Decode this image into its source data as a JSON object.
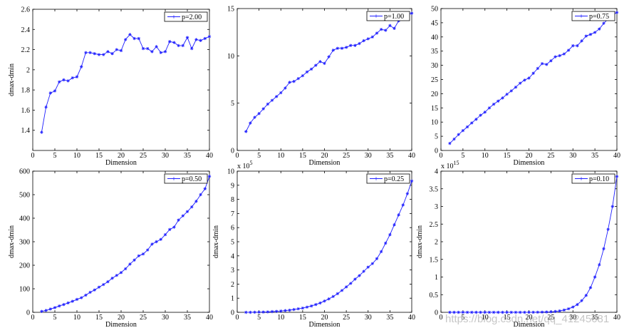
{
  "figure": {
    "watermark": "https://blog.csdn.net/qq_41245681",
    "series_color": "#1f1fff"
  },
  "chart_data": [
    {
      "type": "line",
      "title": "",
      "xlabel": "Dimension",
      "ylabel": "dmax-dmin",
      "xlim": [
        0,
        40
      ],
      "ylim": [
        1.2,
        2.6
      ],
      "xticks": [
        0,
        5,
        10,
        15,
        20,
        25,
        30,
        35,
        40
      ],
      "yticks": [
        1.4,
        1.6,
        1.8,
        2,
        2.2,
        2.4,
        2.6
      ],
      "ytick_labels": [
        "1.4",
        "1.6",
        "1.8",
        "2",
        "2.2",
        "2.4",
        "2.6"
      ],
      "exponent_label": "",
      "legend": "p=2.00",
      "legend_position": "top-right",
      "series": [
        {
          "name": "p=2.00",
          "x": [
            2,
            3,
            4,
            5,
            6,
            7,
            8,
            9,
            10,
            11,
            12,
            13,
            14,
            15,
            16,
            17,
            18,
            19,
            20,
            21,
            22,
            23,
            24,
            25,
            26,
            27,
            28,
            29,
            30,
            31,
            32,
            33,
            34,
            35,
            36,
            37,
            38,
            39,
            40
          ],
          "values": [
            1.38,
            1.63,
            1.77,
            1.79,
            1.88,
            1.9,
            1.89,
            1.92,
            1.93,
            2.03,
            2.17,
            2.17,
            2.16,
            2.15,
            2.15,
            2.18,
            2.16,
            2.2,
            2.19,
            2.3,
            2.35,
            2.31,
            2.31,
            2.21,
            2.21,
            2.18,
            2.23,
            2.17,
            2.18,
            2.28,
            2.27,
            2.24,
            2.24,
            2.32,
            2.21,
            2.3,
            2.29,
            2.31,
            2.33
          ]
        }
      ]
    },
    {
      "type": "line",
      "title": "",
      "xlabel": "Dimension",
      "ylabel": "",
      "xlim": [
        0,
        40
      ],
      "ylim": [
        0,
        15
      ],
      "xticks": [
        0,
        5,
        10,
        15,
        20,
        25,
        30,
        35,
        40
      ],
      "yticks": [
        0,
        5,
        10,
        15
      ],
      "ytick_labels": [
        "0",
        "5",
        "10",
        "15"
      ],
      "exponent_label": "",
      "legend": "p=1.00",
      "legend_position": "top-right",
      "series": [
        {
          "name": "p=1.00",
          "x": [
            2,
            3,
            4,
            5,
            6,
            7,
            8,
            9,
            10,
            11,
            12,
            13,
            14,
            15,
            16,
            17,
            18,
            19,
            20,
            21,
            22,
            23,
            24,
            25,
            26,
            27,
            28,
            29,
            30,
            31,
            32,
            33,
            34,
            35,
            36,
            37,
            38,
            39,
            40
          ],
          "values": [
            2.0,
            2.9,
            3.5,
            3.9,
            4.4,
            4.9,
            5.3,
            5.7,
            6.1,
            6.6,
            7.2,
            7.3,
            7.6,
            7.9,
            8.3,
            8.6,
            9.0,
            9.4,
            9.2,
            9.9,
            10.6,
            10.8,
            10.8,
            10.9,
            11.1,
            11.1,
            11.3,
            11.6,
            11.8,
            12.0,
            12.4,
            12.8,
            12.7,
            13.2,
            12.9,
            13.7,
            14.1,
            14.4,
            14.5
          ]
        }
      ]
    },
    {
      "type": "line",
      "title": "",
      "xlabel": "Dimension",
      "ylabel": "",
      "xlim": [
        0,
        40
      ],
      "ylim": [
        0,
        50
      ],
      "xticks": [
        0,
        5,
        10,
        15,
        20,
        25,
        30,
        35,
        40
      ],
      "yticks": [
        0,
        5,
        10,
        15,
        20,
        25,
        30,
        35,
        40,
        45,
        50
      ],
      "ytick_labels": [
        "0",
        "5",
        "10",
        "15",
        "20",
        "25",
        "30",
        "35",
        "40",
        "45",
        "50"
      ],
      "exponent_label": "",
      "legend": "p=0.75",
      "legend_position": "top-right",
      "series": [
        {
          "name": "p=0.75",
          "x": [
            2,
            3,
            4,
            5,
            6,
            7,
            8,
            9,
            10,
            11,
            12,
            13,
            14,
            15,
            16,
            17,
            18,
            19,
            20,
            21,
            22,
            23,
            24,
            25,
            26,
            27,
            28,
            29,
            30,
            31,
            32,
            33,
            34,
            35,
            36,
            37,
            38,
            39,
            40
          ],
          "values": [
            2.5,
            4.0,
            5.6,
            7.0,
            8.3,
            9.7,
            11.0,
            12.4,
            13.5,
            15.0,
            16.3,
            17.4,
            18.5,
            19.8,
            21.0,
            22.3,
            23.7,
            24.8,
            25.5,
            27.2,
            28.9,
            30.6,
            30.3,
            31.6,
            33.0,
            33.4,
            34.0,
            35.3,
            36.9,
            36.9,
            38.6,
            40.3,
            40.9,
            41.6,
            42.8,
            44.8,
            46.3,
            47.7,
            48.6
          ]
        }
      ]
    },
    {
      "type": "line",
      "title": "",
      "xlabel": "Dimension",
      "ylabel": "dmax-dmin",
      "xlim": [
        0,
        40
      ],
      "ylim": [
        0,
        600
      ],
      "xticks": [
        0,
        5,
        10,
        15,
        20,
        25,
        30,
        35,
        40
      ],
      "yticks": [
        0,
        100,
        200,
        300,
        400,
        500,
        600
      ],
      "ytick_labels": [
        "0",
        "100",
        "200",
        "300",
        "400",
        "500",
        "600"
      ],
      "exponent_label": "",
      "legend": "p=0.50",
      "legend_position": "top-right",
      "series": [
        {
          "name": "p=0.50",
          "x": [
            2,
            3,
            4,
            5,
            6,
            7,
            8,
            9,
            10,
            11,
            12,
            13,
            14,
            15,
            16,
            17,
            18,
            19,
            20,
            21,
            22,
            23,
            24,
            25,
            26,
            27,
            28,
            29,
            30,
            31,
            32,
            33,
            34,
            35,
            36,
            37,
            38,
            39,
            40
          ],
          "values": [
            4,
            8,
            14,
            20,
            27,
            33,
            40,
            47,
            55,
            62,
            73,
            85,
            95,
            107,
            118,
            130,
            145,
            157,
            169,
            185,
            205,
            222,
            240,
            248,
            265,
            290,
            300,
            310,
            330,
            352,
            362,
            392,
            410,
            428,
            448,
            472,
            500,
            525,
            578
          ]
        }
      ]
    },
    {
      "type": "line",
      "title": "",
      "xlabel": "Dimension",
      "ylabel": "dmax-dmin",
      "xlim": [
        0,
        40
      ],
      "ylim": [
        0,
        10
      ],
      "xticks": [
        0,
        5,
        10,
        15,
        20,
        25,
        30,
        35,
        40
      ],
      "yticks": [
        0,
        1,
        2,
        3,
        4,
        5,
        6,
        7,
        8,
        9,
        10
      ],
      "ytick_labels": [
        "0",
        "1",
        "2",
        "3",
        "4",
        "5",
        "6",
        "7",
        "8",
        "9",
        "10"
      ],
      "exponent_label": "x 10",
      "exponent_power": "5",
      "legend": "p=0.25",
      "legend_position": "top-right",
      "series": [
        {
          "name": "p=0.25",
          "x": [
            2,
            3,
            4,
            5,
            6,
            7,
            8,
            9,
            10,
            11,
            12,
            13,
            14,
            15,
            16,
            17,
            18,
            19,
            20,
            21,
            22,
            23,
            24,
            25,
            26,
            27,
            28,
            29,
            30,
            31,
            32,
            33,
            34,
            35,
            36,
            37,
            38,
            39,
            40
          ],
          "values": [
            0.0,
            0.0,
            0.01,
            0.01,
            0.02,
            0.03,
            0.05,
            0.07,
            0.09,
            0.12,
            0.15,
            0.2,
            0.25,
            0.3,
            0.37,
            0.45,
            0.55,
            0.66,
            0.8,
            0.95,
            1.12,
            1.32,
            1.55,
            1.8,
            2.05,
            2.35,
            2.6,
            2.9,
            3.2,
            3.45,
            3.8,
            4.3,
            4.9,
            5.5,
            6.2,
            6.9,
            7.6,
            8.4,
            9.3
          ]
        }
      ]
    },
    {
      "type": "line",
      "title": "",
      "xlabel": "Dimension",
      "ylabel": "dmax-dmin",
      "xlim": [
        0,
        40
      ],
      "ylim": [
        0,
        4
      ],
      "xticks": [
        0,
        5,
        10,
        15,
        20,
        25,
        30,
        35,
        40
      ],
      "yticks": [
        0,
        0.5,
        1,
        1.5,
        2,
        2.5,
        3,
        3.5,
        4
      ],
      "ytick_labels": [
        "0",
        "0.5",
        "1",
        "1.5",
        "2",
        "2.5",
        "3",
        "3.5",
        "4"
      ],
      "exponent_label": "x 10",
      "exponent_power": "15",
      "legend": "p=0.10",
      "legend_position": "top-right",
      "series": [
        {
          "name": "p=0.10",
          "x": [
            2,
            3,
            4,
            5,
            6,
            7,
            8,
            9,
            10,
            11,
            12,
            13,
            14,
            15,
            16,
            17,
            18,
            19,
            20,
            21,
            22,
            23,
            24,
            25,
            26,
            27,
            28,
            29,
            30,
            31,
            32,
            33,
            34,
            35,
            36,
            37,
            38,
            39,
            40
          ],
          "values": [
            0,
            0,
            0,
            0,
            0,
            0,
            0,
            0,
            0,
            0,
            0,
            0,
            0,
            0,
            0,
            0,
            0,
            0,
            0.001,
            0.002,
            0.004,
            0.006,
            0.01,
            0.015,
            0.025,
            0.04,
            0.065,
            0.1,
            0.15,
            0.22,
            0.33,
            0.48,
            0.7,
            1.0,
            1.35,
            1.8,
            2.35,
            3.0,
            3.85
          ]
        }
      ]
    }
  ]
}
